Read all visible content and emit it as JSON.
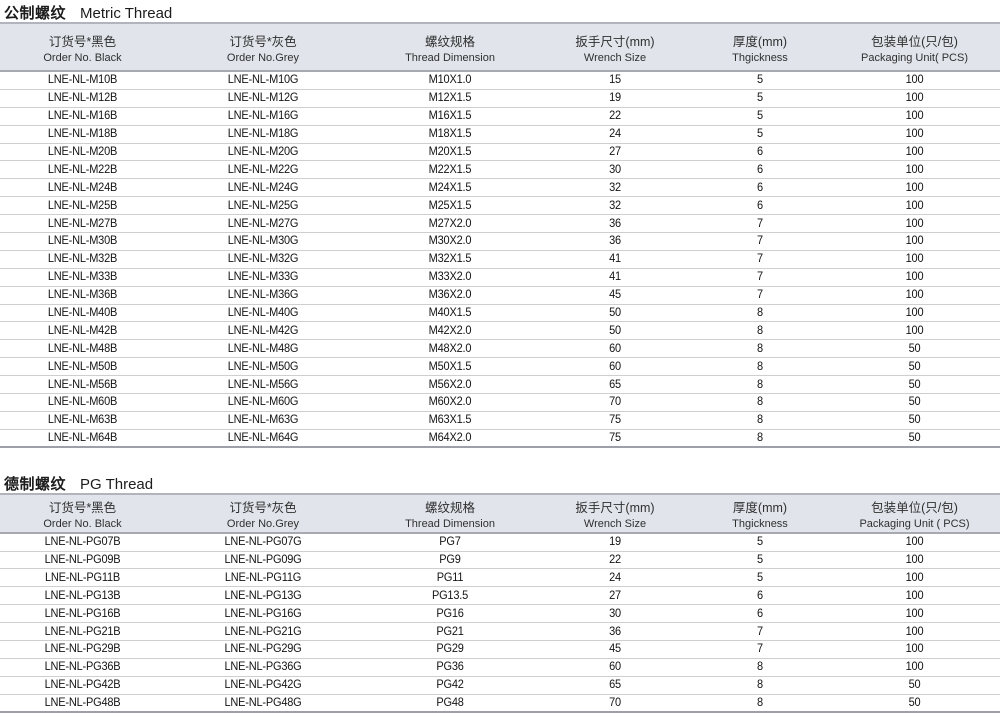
{
  "colors": {
    "header_bg": "#e1e5eb",
    "header_top_border": "#b1b5bb",
    "header_bottom_border": "#a6aab0",
    "row_border": "#cdcfd2",
    "table_end_border": "#9da1a7",
    "title_color": "#1c1c1c",
    "text_color": "#141414"
  },
  "tables": [
    {
      "title_zh": "公制螺纹",
      "title_en": "Metric Thread",
      "columns": [
        {
          "zh": "订货号*黑色",
          "en": "Order No. Black"
        },
        {
          "zh": "订货号*灰色",
          "en": "Order No.Grey"
        },
        {
          "zh": "螺纹规格",
          "en": "Thread Dimension"
        },
        {
          "zh": "扳手尺寸(mm)",
          "en": "Wrench Size"
        },
        {
          "zh": "厚度(mm)",
          "en": "Thgickness"
        },
        {
          "zh": "包装单位(只/包)",
          "en": "Packaging Unit( PCS)"
        }
      ],
      "rows": [
        [
          "LNE-NL-M10B",
          "LNE-NL-M10G",
          "M10X1.0",
          "15",
          "5",
          "100"
        ],
        [
          "LNE-NL-M12B",
          "LNE-NL-M12G",
          "M12X1.5",
          "19",
          "5",
          "100"
        ],
        [
          "LNE-NL-M16B",
          "LNE-NL-M16G",
          "M16X1.5",
          "22",
          "5",
          "100"
        ],
        [
          "LNE-NL-M18B",
          "LNE-NL-M18G",
          "M18X1.5",
          "24",
          "5",
          "100"
        ],
        [
          "LNE-NL-M20B",
          "LNE-NL-M20G",
          "M20X1.5",
          "27",
          "6",
          "100"
        ],
        [
          "LNE-NL-M22B",
          "LNE-NL-M22G",
          "M22X1.5",
          "30",
          "6",
          "100"
        ],
        [
          "LNE-NL-M24B",
          "LNE-NL-M24G",
          "M24X1.5",
          "32",
          "6",
          "100"
        ],
        [
          "LNE-NL-M25B",
          "LNE-NL-M25G",
          "M25X1.5",
          "32",
          "6",
          "100"
        ],
        [
          "LNE-NL-M27B",
          "LNE-NL-M27G",
          "M27X2.0",
          "36",
          "7",
          "100"
        ],
        [
          "LNE-NL-M30B",
          "LNE-NL-M30G",
          "M30X2.0",
          "36",
          "7",
          "100"
        ],
        [
          "LNE-NL-M32B",
          "LNE-NL-M32G",
          "M32X1.5",
          "41",
          "7",
          "100"
        ],
        [
          "LNE-NL-M33B",
          "LNE-NL-M33G",
          "M33X2.0",
          "41",
          "7",
          "100"
        ],
        [
          "LNE-NL-M36B",
          "LNE-NL-M36G",
          "M36X2.0",
          "45",
          "7",
          "100"
        ],
        [
          "LNE-NL-M40B",
          "LNE-NL-M40G",
          "M40X1.5",
          "50",
          "8",
          "100"
        ],
        [
          "LNE-NL-M42B",
          "LNE-NL-M42G",
          "M42X2.0",
          "50",
          "8",
          "100"
        ],
        [
          "LNE-NL-M48B",
          "LNE-NL-M48G",
          "M48X2.0",
          "60",
          "8",
          "50"
        ],
        [
          "LNE-NL-M50B",
          "LNE-NL-M50G",
          "M50X1.5",
          "60",
          "8",
          "50"
        ],
        [
          "LNE-NL-M56B",
          "LNE-NL-M56G",
          "M56X2.0",
          "65",
          "8",
          "50"
        ],
        [
          "LNE-NL-M60B",
          "LNE-NL-M60G",
          "M60X2.0",
          "70",
          "8",
          "50"
        ],
        [
          "LNE-NL-M63B",
          "LNE-NL-M63G",
          "M63X1.5",
          "75",
          "8",
          "50"
        ],
        [
          "LNE-NL-M64B",
          "LNE-NL-M64G",
          "M64X2.0",
          "75",
          "8",
          "50"
        ]
      ]
    },
    {
      "title_zh": "德制螺纹",
      "title_en": "PG Thread",
      "columns": [
        {
          "zh": "订货号*黑色",
          "en": "Order No. Black"
        },
        {
          "zh": "订货号*灰色",
          "en": "Order No.Grey"
        },
        {
          "zh": "螺纹规格",
          "en": "Thread Dimension"
        },
        {
          "zh": "扳手尺寸(mm)",
          "en": "Wrench Size"
        },
        {
          "zh": "厚度(mm)",
          "en": "Thgickness"
        },
        {
          "zh": "包装单位(只/包)",
          "en": "Packaging Unit ( PCS)"
        }
      ],
      "rows": [
        [
          "LNE-NL-PG07B",
          "LNE-NL-PG07G",
          "PG7",
          "19",
          "5",
          "100"
        ],
        [
          "LNE-NL-PG09B",
          "LNE-NL-PG09G",
          "PG9",
          "22",
          "5",
          "100"
        ],
        [
          "LNE-NL-PG11B",
          "LNE-NL-PG11G",
          "PG11",
          "24",
          "5",
          "100"
        ],
        [
          "LNE-NL-PG13B",
          "LNE-NL-PG13G",
          "PG13.5",
          "27",
          "6",
          "100"
        ],
        [
          "LNE-NL-PG16B",
          "LNE-NL-PG16G",
          "PG16",
          "30",
          "6",
          "100"
        ],
        [
          "LNE-NL-PG21B",
          "LNE-NL-PG21G",
          "PG21",
          "36",
          "7",
          "100"
        ],
        [
          "LNE-NL-PG29B",
          "LNE-NL-PG29G",
          "PG29",
          "45",
          "7",
          "100"
        ],
        [
          "LNE-NL-PG36B",
          "LNE-NL-PG36G",
          "PG36",
          "60",
          "8",
          "100"
        ],
        [
          "LNE-NL-PG42B",
          "LNE-NL-PG42G",
          "PG42",
          "65",
          "8",
          "50"
        ],
        [
          "LNE-NL-PG48B",
          "LNE-NL-PG48G",
          "PG48",
          "70",
          "8",
          "50"
        ]
      ]
    }
  ]
}
